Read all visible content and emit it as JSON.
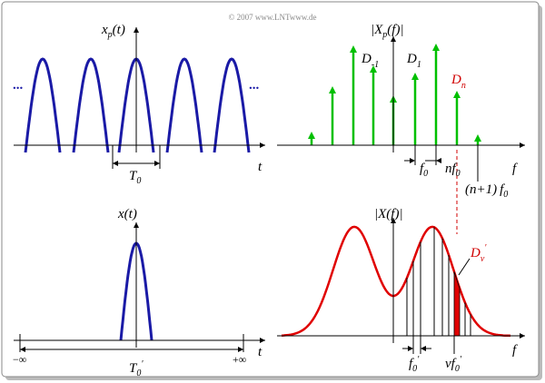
{
  "copyright": "© 2007 www.LNTwww.de",
  "top_left": {
    "signal": {
      "name": "x",
      "sub": "p",
      "arg": "(t)"
    },
    "axis": "t",
    "period": {
      "name": "T",
      "sub": "0"
    },
    "ellipsis": [
      "...",
      "..."
    ]
  },
  "top_right": {
    "spectrum": {
      "name": "|X",
      "sub": "p",
      "arg": "(f)|"
    },
    "axis": "f",
    "coefficients": [
      {
        "name": "D",
        "sub": "-1"
      },
      {
        "name": "D",
        "sub": "1"
      },
      {
        "name": "D",
        "sub": "n"
      }
    ],
    "marks": [
      {
        "name": "f",
        "sub": "0"
      },
      {
        "prefix": "n",
        "name": "f",
        "sub": "0"
      },
      {
        "prefix": "(n+1)",
        "name": "f",
        "sub": "0"
      }
    ]
  },
  "bottom_left": {
    "signal": "x(t)",
    "axis": "t",
    "period": {
      "name": "T",
      "sub": "0",
      "prime": "′"
    },
    "limits": [
      "−∞",
      "+∞"
    ]
  },
  "bottom_right": {
    "spectrum": "|X(f)|",
    "axis": "f",
    "coefficient": {
      "name": "D",
      "sub": "ν",
      "prime": "′"
    },
    "marks": [
      {
        "name": "f",
        "sub": "0",
        "prime": "′"
      },
      {
        "prefix": "ν",
        "name": "f",
        "sub": "0",
        "prime": "′"
      }
    ]
  }
}
